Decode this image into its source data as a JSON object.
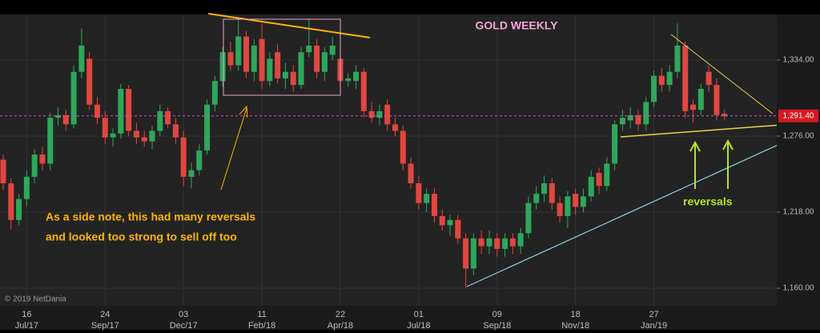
{
  "chart_data": {
    "type": "candlestick",
    "title": "GOLD WEEKLY",
    "annotations": [
      "As a side note,  this had many reversals",
      "and looked too strong to sell off too"
    ],
    "reversals_label": "reversals",
    "copyright": "© 2019 NetDania",
    "up_color": "#2ea85a",
    "down_color": "#e0473f",
    "ylim": [
      1146.6,
      1368.8
    ],
    "yticks": [
      {
        "value": 1160,
        "label": "1,160.00"
      },
      {
        "value": 1218,
        "label": "1,218.00"
      },
      {
        "value": 1276,
        "label": "1,276.00"
      },
      {
        "value": 1334,
        "label": "1,334.00"
      }
    ],
    "grid": true,
    "last_price": {
      "value": 1291.4,
      "label": "1,291.40"
    },
    "categories": [
      null,
      null,
      null,
      [
        "16",
        "Jul/17"
      ],
      null,
      null,
      null,
      null,
      null,
      null,
      null,
      null,
      null,
      [
        "24",
        "Sep/17"
      ],
      null,
      null,
      null,
      null,
      null,
      null,
      null,
      null,
      null,
      [
        "03",
        "Dec/17"
      ],
      null,
      null,
      null,
      null,
      null,
      null,
      null,
      null,
      null,
      [
        "11",
        "Feb/18"
      ],
      null,
      null,
      null,
      null,
      null,
      null,
      null,
      null,
      null,
      [
        "22",
        "Apr/18"
      ],
      null,
      null,
      null,
      null,
      null,
      null,
      null,
      null,
      null,
      [
        "01",
        "Jul/18"
      ],
      null,
      null,
      null,
      null,
      null,
      null,
      null,
      null,
      null,
      [
        "09",
        "Sep/18"
      ],
      null,
      null,
      null,
      null,
      null,
      null,
      null,
      null,
      null,
      [
        "18",
        "Nov/18"
      ],
      null,
      null,
      null,
      null,
      null,
      null,
      null,
      null,
      null,
      [
        "27",
        "Jan/19"
      ],
      null,
      null,
      null,
      null,
      null,
      null,
      null,
      null,
      null
    ],
    "ohlc": [
      [
        1258,
        1262,
        1235,
        1240
      ],
      [
        1240,
        1244,
        1205,
        1212
      ],
      [
        1212,
        1232,
        1208,
        1228
      ],
      [
        1228,
        1250,
        1222,
        1245
      ],
      [
        1245,
        1266,
        1240,
        1262
      ],
      [
        1262,
        1268,
        1250,
        1255
      ],
      [
        1255,
        1294,
        1250,
        1290
      ],
      [
        1290,
        1298,
        1284,
        1292
      ],
      [
        1292,
        1296,
        1280,
        1285
      ],
      [
        1285,
        1330,
        1282,
        1325
      ],
      [
        1325,
        1358,
        1320,
        1345
      ],
      [
        1335,
        1340,
        1296,
        1300
      ],
      [
        1300,
        1306,
        1285,
        1290
      ],
      [
        1290,
        1295,
        1270,
        1275
      ],
      [
        1275,
        1282,
        1268,
        1278
      ],
      [
        1278,
        1316,
        1274,
        1312
      ],
      [
        1312,
        1315,
        1276,
        1280
      ],
      [
        1280,
        1286,
        1270,
        1275
      ],
      [
        1275,
        1280,
        1268,
        1272
      ],
      [
        1272,
        1284,
        1266,
        1280
      ],
      [
        1280,
        1300,
        1276,
        1295
      ],
      [
        1295,
        1298,
        1282,
        1285
      ],
      [
        1285,
        1290,
        1270,
        1275
      ],
      [
        1275,
        1280,
        1238,
        1245
      ],
      [
        1245,
        1256,
        1236,
        1250
      ],
      [
        1250,
        1270,
        1246,
        1265
      ],
      [
        1265,
        1304,
        1262,
        1300
      ],
      [
        1300,
        1322,
        1295,
        1318
      ],
      [
        1318,
        1344,
        1314,
        1340
      ],
      [
        1340,
        1348,
        1326,
        1330
      ],
      [
        1330,
        1365,
        1326,
        1352
      ],
      [
        1352,
        1356,
        1320,
        1325
      ],
      [
        1325,
        1350,
        1318,
        1345
      ],
      [
        1350,
        1362,
        1312,
        1318
      ],
      [
        1318,
        1340,
        1314,
        1335
      ],
      [
        1340,
        1346,
        1316,
        1320
      ],
      [
        1320,
        1332,
        1312,
        1325
      ],
      [
        1325,
        1330,
        1310,
        1315
      ],
      [
        1315,
        1344,
        1312,
        1340
      ],
      [
        1340,
        1366,
        1336,
        1345
      ],
      [
        1345,
        1350,
        1320,
        1325
      ],
      [
        1325,
        1344,
        1318,
        1340
      ],
      [
        1338,
        1352,
        1334,
        1345
      ],
      [
        1335,
        1340,
        1312,
        1318
      ],
      [
        1318,
        1324,
        1314,
        1320
      ],
      [
        1318,
        1330,
        1312,
        1325
      ],
      [
        1325,
        1328,
        1290,
        1295
      ],
      [
        1295,
        1302,
        1286,
        1290
      ],
      [
        1290,
        1300,
        1284,
        1295
      ],
      [
        1300,
        1304,
        1280,
        1285
      ],
      [
        1285,
        1290,
        1276,
        1280
      ],
      [
        1280,
        1284,
        1250,
        1255
      ],
      [
        1255,
        1260,
        1236,
        1240
      ],
      [
        1240,
        1246,
        1220,
        1225
      ],
      [
        1225,
        1236,
        1218,
        1232
      ],
      [
        1232,
        1236,
        1210,
        1215
      ],
      [
        1215,
        1220,
        1204,
        1208
      ],
      [
        1208,
        1216,
        1200,
        1212
      ],
      [
        1212,
        1216,
        1194,
        1198
      ],
      [
        1198,
        1202,
        1160,
        1175
      ],
      [
        1175,
        1202,
        1170,
        1198
      ],
      [
        1198,
        1204,
        1186,
        1192
      ],
      [
        1192,
        1204,
        1186,
        1198
      ],
      [
        1198,
        1202,
        1184,
        1190
      ],
      [
        1190,
        1202,
        1184,
        1198
      ],
      [
        1198,
        1202,
        1186,
        1192
      ],
      [
        1192,
        1206,
        1186,
        1202
      ],
      [
        1202,
        1230,
        1198,
        1225
      ],
      [
        1225,
        1238,
        1220,
        1232
      ],
      [
        1232,
        1246,
        1226,
        1240
      ],
      [
        1240,
        1244,
        1220,
        1225
      ],
      [
        1225,
        1230,
        1210,
        1215
      ],
      [
        1215,
        1234,
        1206,
        1230
      ],
      [
        1232,
        1236,
        1216,
        1222
      ],
      [
        1222,
        1236,
        1218,
        1230
      ],
      [
        1230,
        1250,
        1226,
        1245
      ],
      [
        1248,
        1252,
        1232,
        1238
      ],
      [
        1238,
        1260,
        1234,
        1255
      ],
      [
        1255,
        1288,
        1250,
        1285
      ],
      [
        1285,
        1296,
        1280,
        1290
      ],
      [
        1288,
        1298,
        1282,
        1292
      ],
      [
        1292,
        1296,
        1280,
        1285
      ],
      [
        1285,
        1306,
        1280,
        1302
      ],
      [
        1302,
        1326,
        1298,
        1322
      ],
      [
        1322,
        1328,
        1310,
        1315
      ],
      [
        1315,
        1330,
        1310,
        1325
      ],
      [
        1325,
        1362,
        1320,
        1345
      ],
      [
        1345,
        1348,
        1290,
        1295
      ],
      [
        1300,
        1304,
        1286,
        1296
      ],
      [
        1296,
        1316,
        1292,
        1312
      ],
      [
        1325,
        1330,
        1310,
        1315
      ],
      [
        1315,
        1320,
        1288,
        1292
      ],
      [
        1293,
        1296,
        1288,
        1291
      ]
    ]
  }
}
